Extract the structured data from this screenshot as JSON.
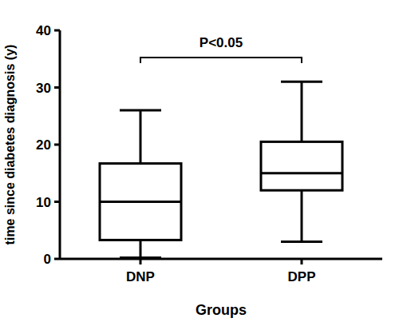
{
  "chart_data": {
    "type": "box",
    "x_label": "Groups",
    "y_label": "time since diabetes diagnosis (y)",
    "categories": [
      "DNP",
      "DPP"
    ],
    "min": [
      0.2,
      3
    ],
    "q1": [
      3.3,
      12
    ],
    "median": [
      10,
      15
    ],
    "q3": [
      16.7,
      20.5
    ],
    "max": [
      26,
      31
    ],
    "color": "#000000",
    "ylim": [
      0,
      40
    ],
    "yticks": [
      0,
      10,
      20,
      30,
      40
    ],
    "annotation": "P<0.05"
  }
}
